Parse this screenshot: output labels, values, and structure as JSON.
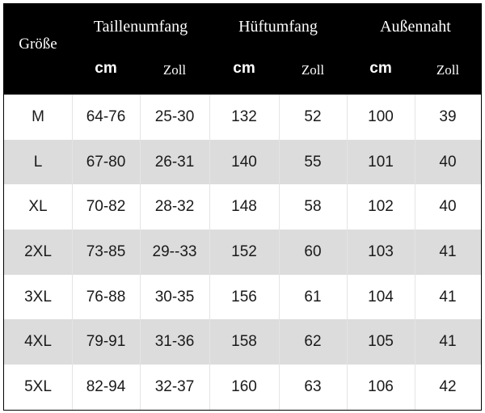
{
  "table": {
    "size_header": "Größe",
    "groups": [
      "Taillenumfang",
      "Hüftumfang",
      "Außennaht"
    ],
    "units": [
      "cm",
      "Zoll",
      "cm",
      "Zoll",
      "cm",
      "Zoll"
    ],
    "rows": [
      [
        "M",
        "64-76",
        "25-30",
        "132",
        "52",
        "100",
        "39"
      ],
      [
        "L",
        "67-80",
        "26-31",
        "140",
        "55",
        "101",
        "40"
      ],
      [
        "XL",
        "70-82",
        "28-32",
        "148",
        "58",
        "102",
        "40"
      ],
      [
        "2XL",
        "73-85",
        "29--33",
        "152",
        "60",
        "103",
        "41"
      ],
      [
        "3XL",
        "76-88",
        "30-35",
        "156",
        "61",
        "104",
        "41"
      ],
      [
        "4XL",
        "79-91",
        "31-36",
        "158",
        "62",
        "105",
        "41"
      ],
      [
        "5XL",
        "82-94",
        "32-37",
        "160",
        "63",
        "106",
        "42"
      ]
    ],
    "colors": {
      "header_bg": "#000000",
      "header_text": "#ffffff",
      "stripe_bg": "#dcdcdc"
    }
  }
}
